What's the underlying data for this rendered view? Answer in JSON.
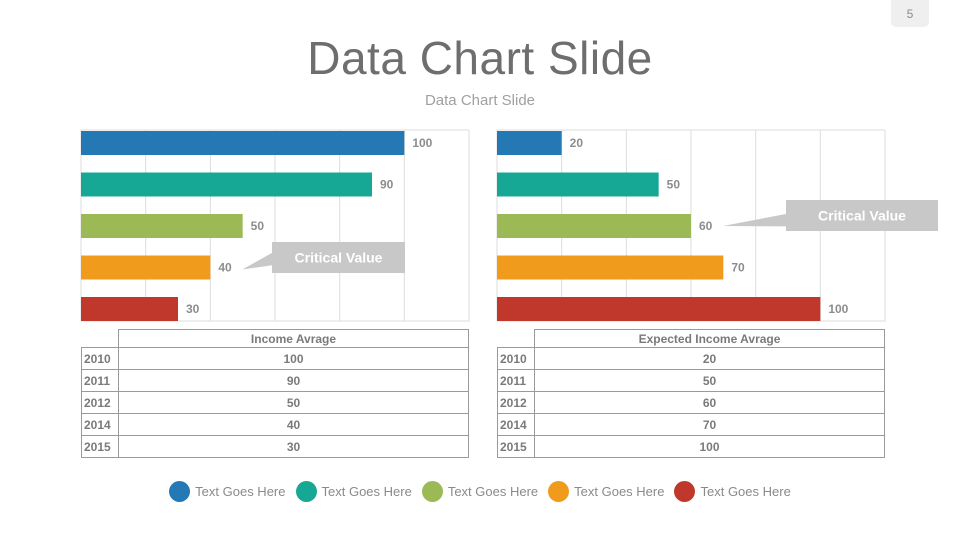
{
  "page_number": "5",
  "title": "Data Chart Slide",
  "subtitle": "Data Chart Slide",
  "colors": {
    "blue": "#2479b5",
    "teal": "#16a895",
    "green": "#9bba55",
    "orange": "#f09b1b",
    "red": "#c0382b",
    "callout": "#c8c8c8",
    "grid": "#dcdcdc"
  },
  "chart_data": [
    {
      "type": "bar",
      "orientation": "horizontal",
      "categories": [
        "2010",
        "2011",
        "2012",
        "2014",
        "2015"
      ],
      "values": [
        100,
        90,
        50,
        40,
        30
      ],
      "xlim": [
        0,
        120
      ],
      "grid": true,
      "callout": {
        "text": "Critical Value",
        "points_to_index": 3
      },
      "table": {
        "header": "Income Avrage",
        "years": [
          "2010",
          "2011",
          "2012",
          "2014",
          "2015"
        ],
        "values": [
          "100",
          "90",
          "50",
          "40",
          "30"
        ]
      }
    },
    {
      "type": "bar",
      "orientation": "horizontal",
      "categories": [
        "2010",
        "2011",
        "2012",
        "2014",
        "2015"
      ],
      "values": [
        20,
        50,
        60,
        70,
        100
      ],
      "xlim": [
        0,
        120
      ],
      "grid": true,
      "callout": {
        "text": "Critical Value",
        "points_to_index": 2
      },
      "table": {
        "header": "Expected Income Avrage",
        "years": [
          "2010",
          "2011",
          "2012",
          "2014",
          "2015"
        ],
        "values": [
          "20",
          "50",
          "60",
          "70",
          "100"
        ]
      }
    }
  ],
  "legend": [
    {
      "label": "Text Goes Here",
      "color": "#2479b5"
    },
    {
      "label": "Text Goes Here",
      "color": "#16a895"
    },
    {
      "label": "Text Goes Here",
      "color": "#9bba55"
    },
    {
      "label": "Text Goes Here",
      "color": "#f09b1b"
    },
    {
      "label": "Text Goes Here",
      "color": "#c0382b"
    }
  ]
}
